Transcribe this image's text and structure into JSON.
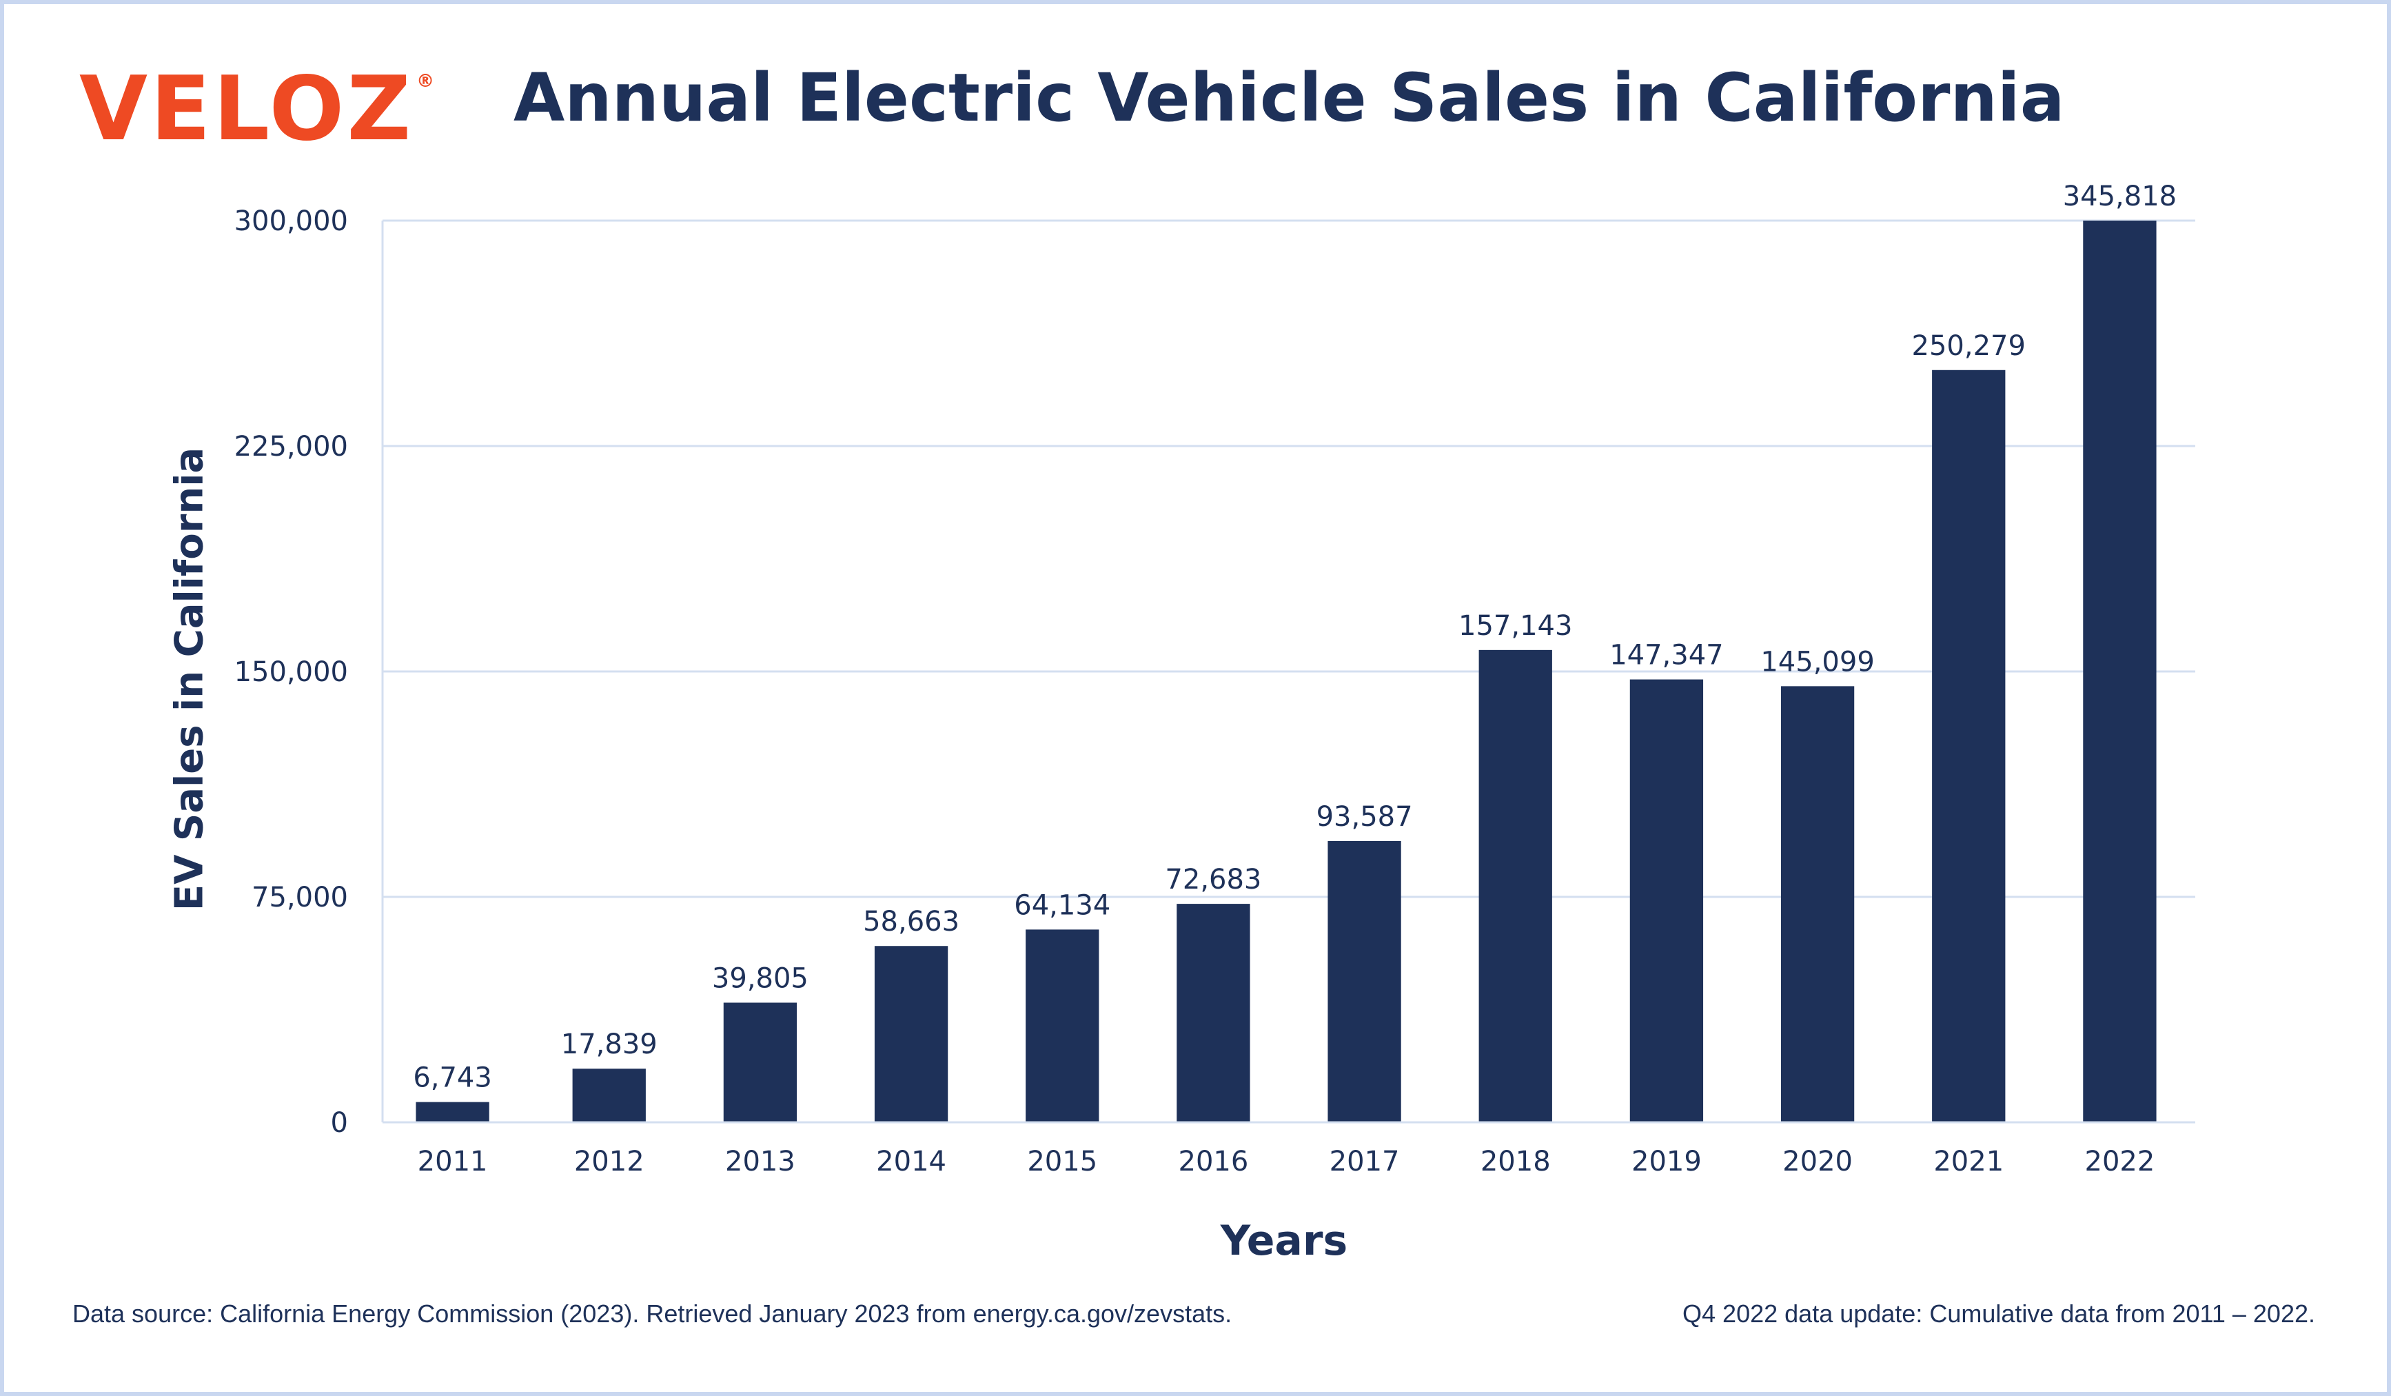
{
  "brand": {
    "logo_text": "VELOZ",
    "logo_reg": "®",
    "logo_color": "#ee4a23"
  },
  "colors": {
    "bar": "#1e3159",
    "text": "#1e3159",
    "grid": "#d4dff0",
    "frame": "#c9d7f0"
  },
  "footer": {
    "source": "Data source: California Energy Commission (2023). Retrieved January 2023 from energy.ca.gov/zevstats.",
    "note": "Q4 2022 data update: Cumulative data from 2011 – 2022."
  },
  "chart_data": {
    "type": "bar",
    "title": "Annual Electric Vehicle Sales in California",
    "xlabel": "Years",
    "ylabel": "EV Sales in California",
    "categories": [
      "2011",
      "2012",
      "2013",
      "2014",
      "2015",
      "2016",
      "2017",
      "2018",
      "2019",
      "2020",
      "2021",
      "2022"
    ],
    "values": [
      6743,
      17839,
      39805,
      58663,
      64134,
      72683,
      93587,
      157143,
      147347,
      145099,
      250279,
      345818
    ],
    "value_labels": [
      "6,743",
      "17,839",
      "39,805",
      "58,663",
      "64,134",
      "72,683",
      "93,587",
      "157,143",
      "147,347",
      "145,099",
      "250,279",
      "345,818"
    ],
    "yticks": [
      0,
      75000,
      150000,
      225000,
      300000
    ],
    "ytick_labels": [
      "0",
      "75,000",
      "150,000",
      "225,000",
      "300,000"
    ],
    "ylim": [
      0,
      300000
    ],
    "grid": true,
    "legend": "none"
  }
}
